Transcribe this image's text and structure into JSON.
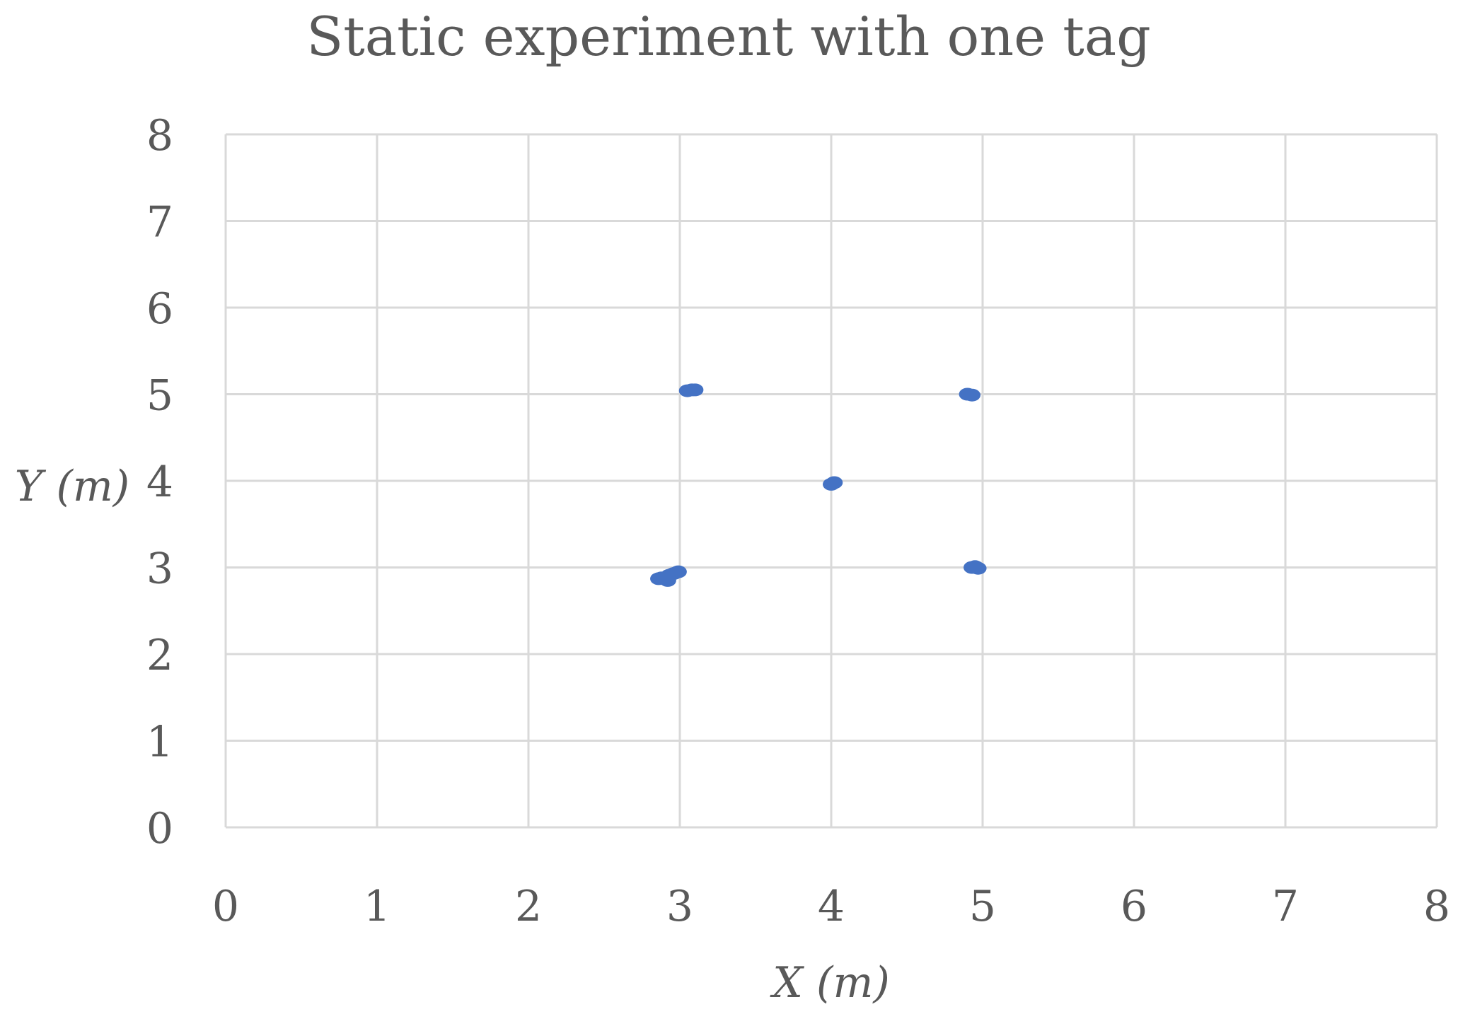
{
  "chart_data": {
    "type": "scatter",
    "title": "Static experiment with one tag",
    "xlabel": "X (m)",
    "ylabel": "Y (m)",
    "xlim": [
      0,
      8
    ],
    "ylim": [
      0,
      8
    ],
    "xticks": [
      0,
      1,
      2,
      3,
      4,
      5,
      6,
      7,
      8
    ],
    "yticks": [
      0,
      1,
      2,
      3,
      4,
      5,
      6,
      7,
      8
    ],
    "grid": true,
    "legend": "none",
    "colors": {
      "point": "#4472c4",
      "grid": "#d9d9d9",
      "text": "#595959"
    },
    "series": [
      {
        "points": [
          [
            3.05,
            5.04
          ],
          [
            3.08,
            5.05
          ],
          [
            3.1,
            5.05
          ],
          [
            4.9,
            5.0
          ],
          [
            4.93,
            4.99
          ],
          [
            4.0,
            3.96
          ],
          [
            4.02,
            3.98
          ],
          [
            2.88,
            2.88
          ],
          [
            2.91,
            2.88
          ],
          [
            2.93,
            2.91
          ],
          [
            2.96,
            2.93
          ],
          [
            2.99,
            2.95
          ],
          [
            2.92,
            2.85
          ],
          [
            2.86,
            2.87
          ],
          [
            4.93,
            3.0
          ],
          [
            4.97,
            2.99
          ],
          [
            4.95,
            3.01
          ]
        ]
      }
    ]
  }
}
